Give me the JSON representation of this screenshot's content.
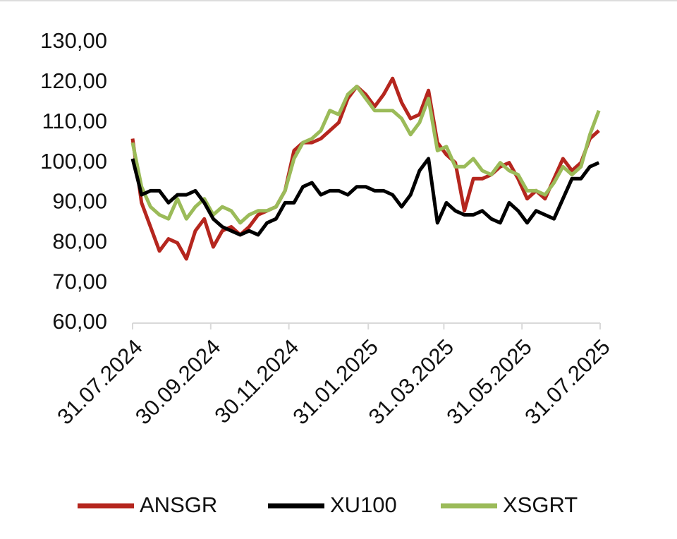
{
  "chart_data": {
    "type": "line",
    "x": [
      "31.07.2024",
      "07.08.2024",
      "14.08.2024",
      "21.08.2024",
      "28.08.2024",
      "04.09.2024",
      "11.09.2024",
      "18.09.2024",
      "25.09.2024",
      "02.10.2024",
      "09.10.2024",
      "16.10.2024",
      "23.10.2024",
      "30.10.2024",
      "06.11.2024",
      "13.11.2024",
      "20.11.2024",
      "27.11.2024",
      "04.12.2024",
      "11.12.2024",
      "18.12.2024",
      "25.12.2024",
      "01.01.2025",
      "08.01.2025",
      "15.01.2025",
      "22.01.2025",
      "29.01.2025",
      "05.02.2025",
      "12.02.2025",
      "19.02.2025",
      "26.02.2025",
      "05.03.2025",
      "12.03.2025",
      "19.03.2025",
      "26.03.2025",
      "02.04.2025",
      "09.04.2025",
      "16.04.2025",
      "23.04.2025",
      "30.04.2025",
      "07.05.2025",
      "14.05.2025",
      "21.05.2025",
      "28.05.2025",
      "04.06.2025",
      "11.06.2025",
      "18.06.2025",
      "25.06.2025",
      "02.07.2025",
      "09.07.2025",
      "16.07.2025",
      "23.07.2025",
      "30.07.2025"
    ],
    "series": [
      {
        "name": "ANSGR",
        "color": "#b5261e",
        "values": [
          106,
          90,
          84,
          78,
          81,
          80,
          76,
          83,
          86,
          79,
          83,
          84,
          82,
          84,
          87,
          88,
          89,
          93,
          103,
          105,
          105,
          106,
          108,
          110,
          116,
          119,
          117,
          114,
          117,
          121,
          115,
          111,
          112,
          118,
          105,
          102,
          100,
          88,
          96,
          96,
          97,
          99,
          100,
          96,
          91,
          93,
          91,
          96,
          101,
          98,
          100,
          106,
          108
        ]
      },
      {
        "name": "XU100",
        "color": "#000000",
        "values": [
          101,
          92,
          93,
          93,
          90,
          92,
          92,
          93,
          90,
          86,
          84,
          83,
          82,
          83,
          82,
          85,
          86,
          90,
          90,
          94,
          95,
          92,
          93,
          93,
          92,
          94,
          94,
          93,
          93,
          92,
          89,
          92,
          98,
          101,
          85,
          90,
          88,
          87,
          87,
          88,
          86,
          85,
          90,
          88,
          85,
          88,
          87,
          86,
          91,
          96,
          96,
          99,
          100
        ]
      },
      {
        "name": "XSGRT",
        "color": "#9bbb59",
        "values": [
          105,
          94,
          89,
          87,
          86,
          91,
          86,
          89,
          91,
          87,
          89,
          88,
          85,
          87,
          88,
          88,
          89,
          93,
          101,
          105,
          106,
          108,
          113,
          112,
          117,
          119,
          116,
          113,
          113,
          113,
          111,
          107,
          110,
          116,
          103,
          104,
          99,
          99,
          101,
          98,
          97,
          100,
          98,
          97,
          93,
          93,
          92,
          95,
          99,
          97,
          99,
          107,
          113
        ]
      }
    ],
    "xlim": [
      "31.07.2024",
      "31.07.2025"
    ],
    "xticks": [
      "31.07.2024",
      "30.09.2024",
      "30.11.2024",
      "31.01.2025",
      "31.03.2025",
      "31.05.2025",
      "31.07.2025"
    ],
    "ylim": [
      60,
      130
    ],
    "yticks": [
      {
        "value": 60,
        "label": "60,00"
      },
      {
        "value": 70,
        "label": "70,00"
      },
      {
        "value": 80,
        "label": "80,00"
      },
      {
        "value": 90,
        "label": "90,00"
      },
      {
        "value": 100,
        "label": "100,00"
      },
      {
        "value": 110,
        "label": "110,00"
      },
      {
        "value": 120,
        "label": "120,00"
      },
      {
        "value": 130,
        "label": "130,00"
      }
    ],
    "grid": false,
    "legend": "bottom"
  }
}
